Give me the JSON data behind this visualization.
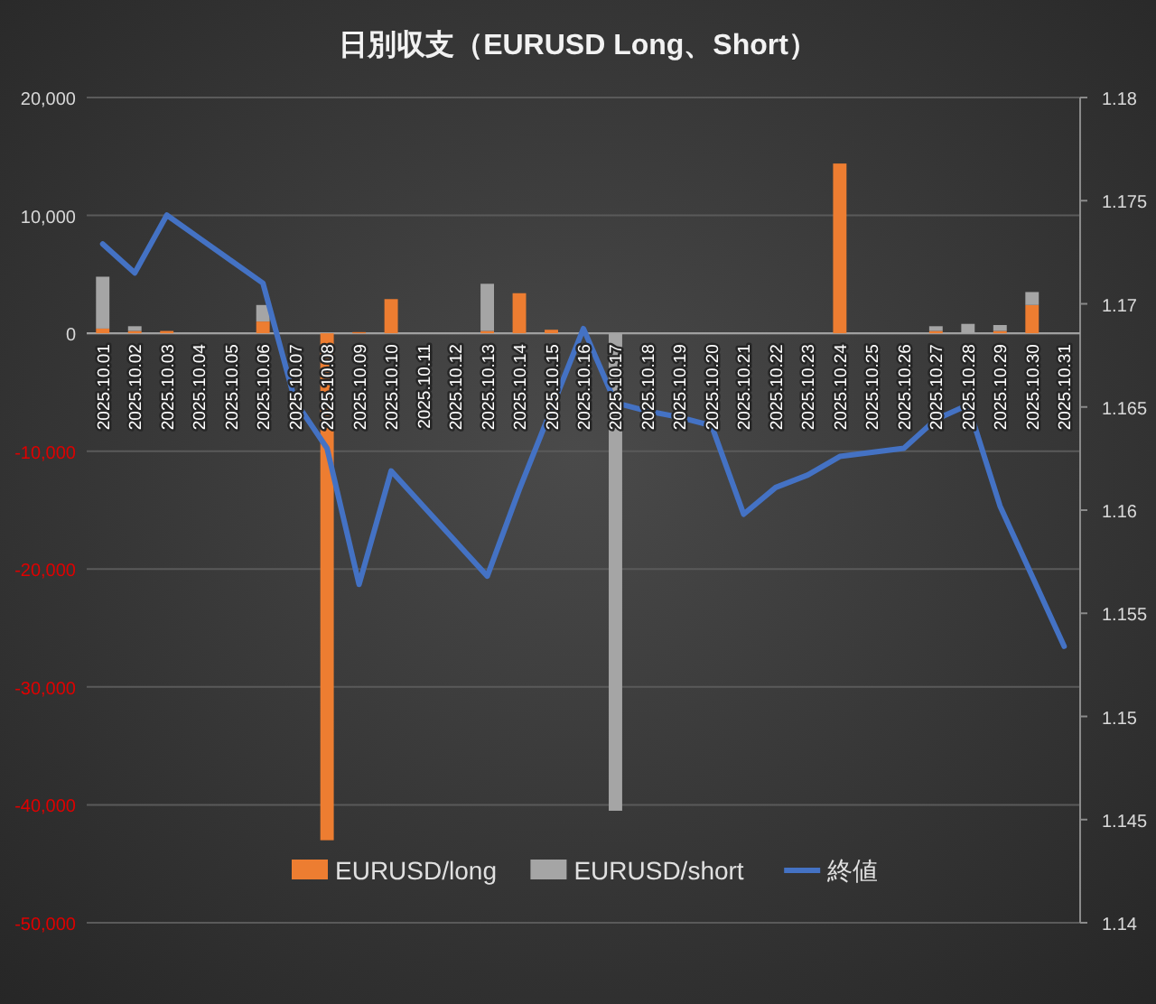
{
  "chart_data": {
    "type": "bar",
    "title": "日別収支（EURUSD Long、Short）",
    "categories": [
      "2025.10.01",
      "2025.10.02",
      "2025.10.03",
      "2025.10.04",
      "2025.10.05",
      "2025.10.06",
      "2025.10.07",
      "2025.10.08",
      "2025.10.09",
      "2025.10.10",
      "2025.10.11",
      "2025.10.12",
      "2025.10.13",
      "2025.10.14",
      "2025.10.15",
      "2025.10.16",
      "2025.10.17",
      "2025.10.18",
      "2025.10.19",
      "2025.10.20",
      "2025.10.21",
      "2025.10.22",
      "2025.10.23",
      "2025.10.24",
      "2025.10.25",
      "2025.10.26",
      "2025.10.27",
      "2025.10.28",
      "2025.10.29",
      "2025.10.30",
      "2025.10.31"
    ],
    "stacked": true,
    "series": [
      {
        "name": "EURUSD/long",
        "color": "#ed7d31",
        "values": [
          400,
          200,
          200,
          0,
          0,
          1000,
          0,
          -43000,
          100,
          2900,
          0,
          0,
          200,
          3400,
          300,
          0,
          0,
          0,
          0,
          0,
          0,
          0,
          0,
          14400,
          0,
          0,
          200,
          0,
          200,
          2400,
          0
        ]
      },
      {
        "name": "EURUSD/short",
        "color": "#a5a5a5",
        "values": [
          4400,
          400,
          0,
          0,
          0,
          1400,
          0,
          0,
          0,
          0,
          0,
          0,
          4000,
          0,
          0,
          0,
          -40500,
          0,
          0,
          0,
          0,
          0,
          0,
          0,
          0,
          0,
          400,
          800,
          500,
          1100,
          0
        ]
      },
      {
        "name": "終値",
        "type": "line",
        "axis": "y2",
        "color": "#4472c4",
        "values": [
          1.1729,
          1.1715,
          1.1743,
          1.1732,
          1.1721,
          1.171,
          1.1653,
          1.163,
          1.1564,
          1.1619,
          1.1602,
          1.1585,
          1.1568,
          1.161,
          1.1649,
          1.1688,
          1.1652,
          1.1648,
          1.1645,
          1.1641,
          1.1598,
          1.1611,
          1.1617,
          1.1626,
          1.1628,
          1.163,
          1.1644,
          1.1651,
          1.1602,
          1.1568,
          1.1534
        ]
      }
    ],
    "ylim": [
      -50000,
      20000
    ],
    "yticks": [
      {
        "value": 20000,
        "label": "20,000"
      },
      {
        "value": 10000,
        "label": "10,000"
      },
      0,
      {
        "value": -10000,
        "label": "-10,000"
      },
      {
        "value": -20000,
        "label": "-20,000"
      },
      {
        "value": -30000,
        "label": "-30,000"
      },
      {
        "value": -40000,
        "label": "-40,000"
      },
      {
        "value": -50000,
        "label": "-50,000"
      }
    ],
    "y2lim": [
      1.14,
      1.18
    ],
    "y2ticks": [
      1.18,
      1.175,
      1.17,
      1.165,
      1.16,
      1.155,
      1.15,
      1.145,
      1.14
    ],
    "grid": "y",
    "legend": "bottom"
  }
}
